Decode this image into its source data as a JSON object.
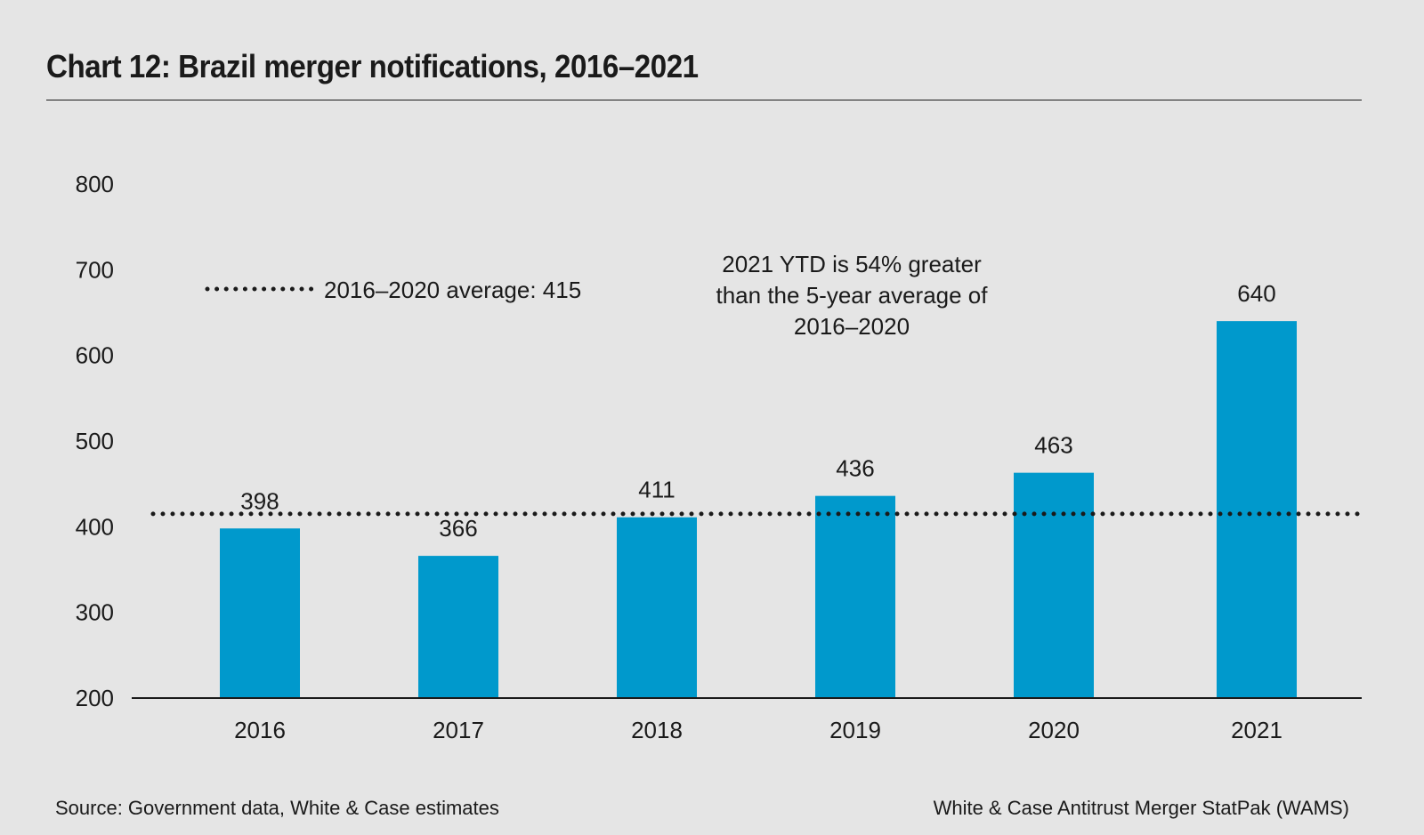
{
  "chart_data": {
    "type": "bar",
    "title": "Chart 12: Brazil merger notifications, 2016–2021",
    "categories": [
      "2016",
      "2017",
      "2018",
      "2019",
      "2020",
      "2021"
    ],
    "values": [
      398,
      366,
      411,
      436,
      463,
      640
    ],
    "data_labels": [
      "398",
      "366",
      "411",
      "436",
      "463",
      "640"
    ],
    "xlabel": "",
    "ylabel": "",
    "ylim": [
      200,
      800
    ],
    "yticks": [
      "200",
      "300",
      "400",
      "500",
      "600",
      "700",
      "800"
    ],
    "ytick_values": [
      200,
      300,
      400,
      500,
      600,
      700,
      800
    ],
    "grid": false,
    "bar_color": "#0099cc",
    "reference_line": {
      "value": 415,
      "style": "dotted",
      "legend_label": "2016–2020 average: 415"
    },
    "annotation": [
      "2021 YTD is 54% greater",
      "than the 5-year average of",
      "2016–2020"
    ],
    "legend_placement": "top-left"
  },
  "footer": {
    "source": "Source: Government data, White & Case estimates",
    "credit": "White & Case Antitrust Merger StatPak (WAMS)"
  }
}
